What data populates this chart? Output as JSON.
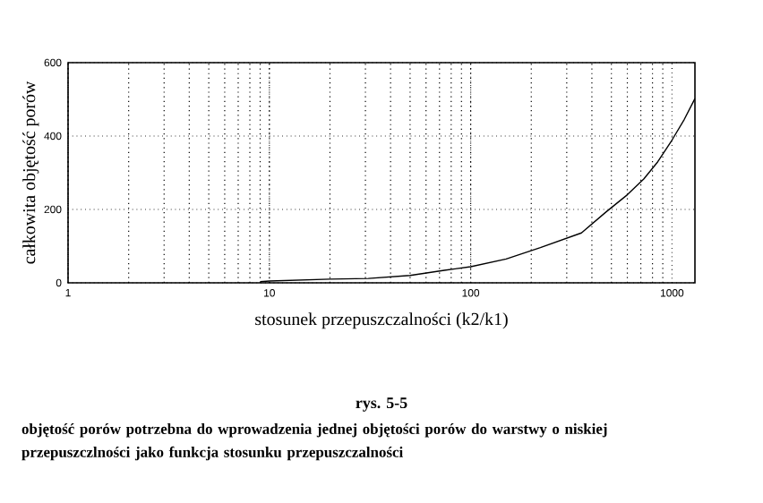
{
  "chart_data": {
    "type": "line",
    "title": "rys. 5-5",
    "subtitle": "objętość porów potrzebna do wprowadzenia jednej objętości porów do warstwy o niskiej przepuszczlności jako funkcja stosunku przepuszczalności",
    "xlabel": "stosunek przepuszczalności (k2/k1)",
    "ylabel": "całkowita objętość porów",
    "log": "x",
    "grid": true,
    "xlim": [
      1,
      1300
    ],
    "ylim": [
      0,
      600
    ],
    "xticks": [
      1,
      10,
      100,
      1000
    ],
    "yticks": [
      0,
      200,
      400,
      600
    ],
    "color": "#000000",
    "x": [
      9,
      10,
      20,
      31,
      50,
      74,
      100,
      150,
      222,
      355,
      470,
      600,
      724,
      850,
      1000,
      1150,
      1300
    ],
    "values": [
      3,
      5,
      10,
      12,
      20,
      34,
      44,
      65,
      96,
      136,
      193,
      240,
      283,
      330,
      389,
      445,
      502
    ]
  }
}
